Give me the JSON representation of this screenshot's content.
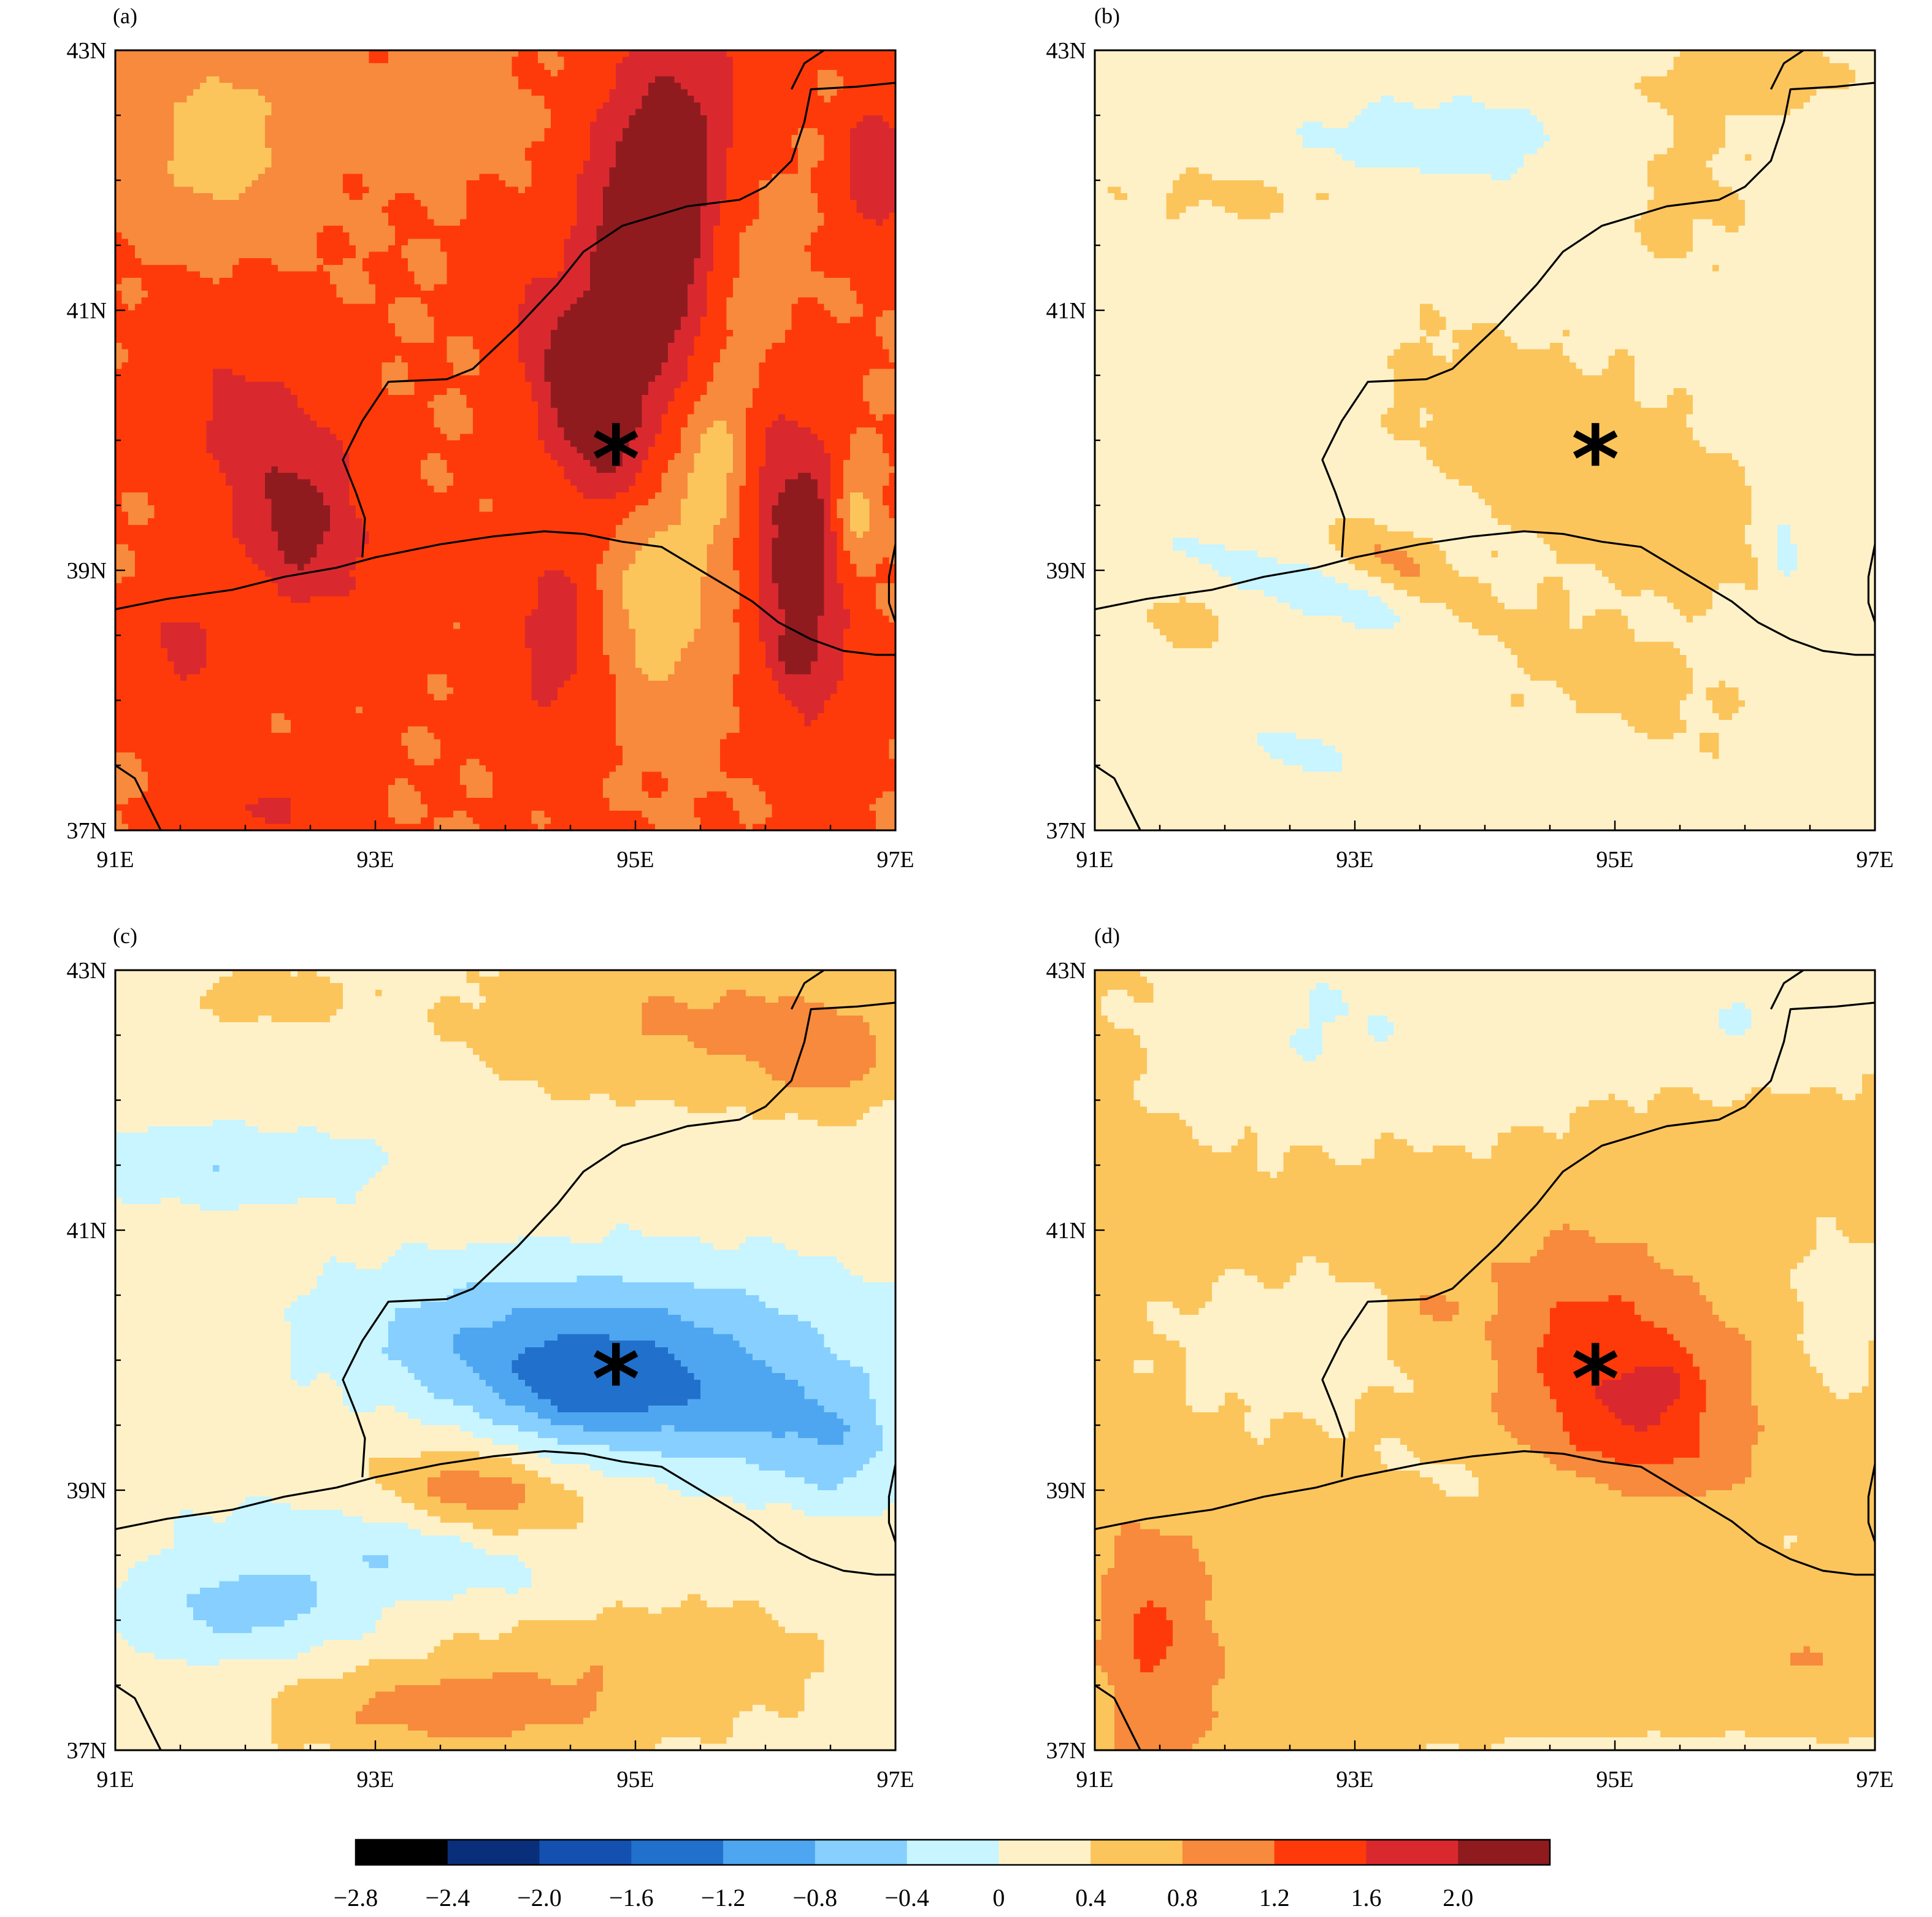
{
  "chart_data": {
    "type": "heatmap",
    "figure": "four-panel filled contour maps",
    "colors": [
      "#000000",
      "#0a2f7a",
      "#1450b0",
      "#2170cc",
      "#4ea6f0",
      "#86cfff",
      "#c8f5ff",
      "#fef1c8",
      "#fbc55c",
      "#f78a3c",
      "#ff3a0a",
      "#d9292f",
      "#8f1b1f"
    ],
    "colorbar_levels": [
      "−2.8",
      "−2.4",
      "−2.0",
      "−1.6",
      "−1.2",
      "−0.8",
      "−0.4",
      "0",
      "0.4",
      "0.8",
      "1.2",
      "1.6",
      "2.0"
    ],
    "colorbar_level_values": [
      -2.8,
      -2.4,
      -2.0,
      -1.6,
      -1.2,
      -0.8,
      -0.4,
      0,
      0.4,
      0.8,
      1.2,
      1.6,
      2.0
    ],
    "xlim": [
      91,
      97
    ],
    "ylim": [
      37,
      43
    ],
    "x_tick_labels": [
      "91E",
      "93E",
      "95E",
      "97E"
    ],
    "y_tick_labels": [
      "37N",
      "39N",
      "41N",
      "43N"
    ],
    "marker": {
      "symbol": "*",
      "lon": 94.85,
      "lat": 39.9
    },
    "panels": [
      {
        "label": "(a)",
        "background": 0.8,
        "anomalies": [
          {
            "lon": 95.15,
            "lat": 41.6,
            "rx": 0.55,
            "ry": 1.5,
            "rot": -8,
            "amp": 1.5
          },
          {
            "lon": 94.6,
            "lat": 40.3,
            "rx": 0.35,
            "ry": 0.9,
            "rot": 25,
            "amp": 0.9
          },
          {
            "lon": 92.3,
            "lat": 39.7,
            "rx": 0.6,
            "ry": 1.2,
            "rot": 25,
            "amp": 0.7
          },
          {
            "lon": 92.4,
            "lat": 39.3,
            "rx": 0.3,
            "ry": 0.45,
            "rot": 0,
            "amp": 0.4
          },
          {
            "lon": 96.25,
            "lat": 39.1,
            "rx": 0.35,
            "ry": 1.2,
            "rot": 5,
            "amp": 1.1
          },
          {
            "lon": 96.2,
            "lat": 38.3,
            "rx": 0.15,
            "ry": 0.2,
            "rot": 0,
            "amp": 0.4
          },
          {
            "lon": 96.35,
            "lat": 39.4,
            "rx": 0.12,
            "ry": 0.3,
            "rot": 0,
            "amp": 0.3
          },
          {
            "lon": 94.4,
            "lat": 38.5,
            "rx": 0.45,
            "ry": 0.9,
            "rot": 0,
            "amp": 0.55
          },
          {
            "lon": 91.5,
            "lat": 38.4,
            "rx": 0.35,
            "ry": 0.5,
            "rot": 0,
            "amp": 0.5
          },
          {
            "lon": 92.2,
            "lat": 37.2,
            "rx": 0.5,
            "ry": 0.35,
            "rot": 0,
            "amp": 0.45
          },
          {
            "lon": 95.15,
            "lat": 38.9,
            "rx": 0.45,
            "ry": 0.9,
            "rot": 0,
            "amp": -0.8
          },
          {
            "lon": 95.6,
            "lat": 39.8,
            "rx": 0.25,
            "ry": 0.55,
            "rot": 0,
            "amp": -0.6
          },
          {
            "lon": 96.7,
            "lat": 39.4,
            "rx": 0.15,
            "ry": 0.4,
            "rot": 0,
            "amp": -0.7
          },
          {
            "lon": 91.8,
            "lat": 42.3,
            "rx": 0.6,
            "ry": 0.7,
            "rot": 0,
            "amp": -0.6
          },
          {
            "lon": 93.5,
            "lat": 42.5,
            "rx": 0.5,
            "ry": 0.35,
            "rot": 0,
            "amp": -0.4
          },
          {
            "lon": 95.8,
            "lat": 41.2,
            "rx": 0.4,
            "ry": 1.1,
            "rot": 0,
            "amp": -0.4
          },
          {
            "lon": 96.85,
            "lat": 42.1,
            "rx": 0.25,
            "ry": 0.5,
            "rot": 0,
            "amp": 0.8
          }
        ]
      },
      {
        "label": "(b)",
        "background": -0.15,
        "anomalies": [
          {
            "lon": 94.8,
            "lat": 39.8,
            "rx": 1.6,
            "ry": 0.7,
            "rot": -30,
            "amp": 0.45
          },
          {
            "lon": 93.3,
            "lat": 39.1,
            "rx": 0.45,
            "ry": 0.18,
            "rot": -25,
            "amp": 0.55
          },
          {
            "lon": 94.5,
            "lat": 38.3,
            "rx": 1.6,
            "ry": 0.4,
            "rot": -20,
            "amp": 0.3
          },
          {
            "lon": 91.7,
            "lat": 38.6,
            "rx": 0.3,
            "ry": 0.15,
            "rot": -20,
            "amp": 0.5
          },
          {
            "lon": 92.3,
            "lat": 41.9,
            "rx": 1.2,
            "ry": 0.25,
            "rot": 0,
            "amp": 0.25
          },
          {
            "lon": 96.1,
            "lat": 42.8,
            "rx": 0.6,
            "ry": 0.25,
            "rot": 0,
            "amp": 0.45
          },
          {
            "lon": 95.5,
            "lat": 42.0,
            "rx": 0.6,
            "ry": 0.8,
            "rot": 0,
            "amp": 0.25
          },
          {
            "lon": 93.6,
            "lat": 42.3,
            "rx": 1.2,
            "ry": 0.4,
            "rot": 0,
            "amp": -0.45
          },
          {
            "lon": 92.8,
            "lat": 38.8,
            "rx": 1.3,
            "ry": 0.2,
            "rot": -20,
            "amp": -0.55
          },
          {
            "lon": 92.6,
            "lat": 37.6,
            "rx": 0.4,
            "ry": 0.15,
            "rot": -15,
            "amp": -0.5
          },
          {
            "lon": 96.3,
            "lat": 39.2,
            "rx": 0.15,
            "ry": 0.5,
            "rot": 0,
            "amp": -0.5
          },
          {
            "lon": 93.6,
            "lat": 39.6,
            "rx": 0.15,
            "ry": 0.1,
            "rot": 0,
            "amp": -0.3
          }
        ]
      },
      {
        "label": "(c)",
        "background": -0.2,
        "anomalies": [
          {
            "lon": 95.0,
            "lat": 39.8,
            "rx": 1.8,
            "ry": 0.55,
            "rot": -10,
            "amp": -1.25
          },
          {
            "lon": 94.5,
            "lat": 39.7,
            "rx": 0.5,
            "ry": 0.3,
            "rot": 0,
            "amp": -0.35
          },
          {
            "lon": 96.5,
            "lat": 39.3,
            "rx": 0.45,
            "ry": 0.45,
            "rot": 0,
            "amp": -0.45
          },
          {
            "lon": 95.1,
            "lat": 40.3,
            "rx": 2.0,
            "ry": 0.6,
            "rot": 0,
            "amp": -0.6
          },
          {
            "lon": 91.8,
            "lat": 41.5,
            "rx": 1.2,
            "ry": 0.3,
            "rot": 0,
            "amp": -0.6
          },
          {
            "lon": 92.0,
            "lat": 38.1,
            "rx": 1.0,
            "ry": 0.4,
            "rot": 0,
            "amp": -0.75
          },
          {
            "lon": 93.2,
            "lat": 38.5,
            "rx": 1.5,
            "ry": 0.3,
            "rot": -10,
            "amp": -0.5
          },
          {
            "lon": 93.8,
            "lat": 39.0,
            "rx": 0.7,
            "ry": 0.3,
            "rot": -10,
            "amp": 0.85
          },
          {
            "lon": 95.5,
            "lat": 42.6,
            "rx": 1.8,
            "ry": 0.6,
            "rot": 0,
            "amp": 0.65
          },
          {
            "lon": 96.5,
            "lat": 42.3,
            "rx": 0.5,
            "ry": 0.4,
            "rot": 0,
            "amp": 0.5
          },
          {
            "lon": 92.2,
            "lat": 42.8,
            "rx": 0.6,
            "ry": 0.2,
            "rot": 0,
            "amp": 0.5
          },
          {
            "lon": 93.5,
            "lat": 37.3,
            "rx": 1.3,
            "ry": 0.35,
            "rot": 0,
            "amp": 0.7
          },
          {
            "lon": 95.0,
            "lat": 37.7,
            "rx": 1.5,
            "ry": 0.6,
            "rot": 0,
            "amp": 0.45
          }
        ]
      },
      {
        "label": "(d)",
        "background": 0.15,
        "anomalies": [
          {
            "lon": 95.05,
            "lat": 39.8,
            "rx": 0.8,
            "ry": 1.1,
            "rot": 35,
            "amp": 1.05
          },
          {
            "lon": 95.3,
            "lat": 39.75,
            "rx": 0.28,
            "ry": 0.18,
            "rot": 30,
            "amp": 0.4
          },
          {
            "lon": 91.5,
            "lat": 37.8,
            "rx": 0.5,
            "ry": 1.1,
            "rot": 0,
            "amp": 0.55
          },
          {
            "lon": 91.4,
            "lat": 37.9,
            "rx": 0.15,
            "ry": 0.25,
            "rot": 0,
            "amp": 0.4
          },
          {
            "lon": 93.6,
            "lat": 40.4,
            "rx": 0.2,
            "ry": 0.15,
            "rot": 0,
            "amp": 0.4
          },
          {
            "lon": 96.5,
            "lat": 37.7,
            "rx": 0.2,
            "ry": 0.1,
            "rot": 0,
            "amp": 0.4
          },
          {
            "lon": 92.7,
            "lat": 42.6,
            "rx": 1.3,
            "ry": 0.9,
            "rot": 0,
            "amp": -0.55
          },
          {
            "lon": 96.0,
            "lat": 42.7,
            "rx": 1.2,
            "ry": 0.6,
            "rot": 0,
            "amp": -0.55
          },
          {
            "lon": 94.2,
            "lat": 42.5,
            "rx": 0.8,
            "ry": 1.0,
            "rot": 0,
            "amp": -0.2
          },
          {
            "lon": 92.5,
            "lat": 40.1,
            "rx": 1.1,
            "ry": 0.6,
            "rot": 0,
            "amp": -0.35
          },
          {
            "lon": 95.0,
            "lat": 38.9,
            "rx": 1.7,
            "ry": 0.25,
            "rot": -10,
            "amp": -0.35
          },
          {
            "lon": 96.7,
            "lat": 40.3,
            "rx": 0.4,
            "ry": 0.8,
            "rot": 0,
            "amp": -0.3
          },
          {
            "lon": 95.6,
            "lat": 37.0,
            "rx": 2.0,
            "ry": 0.12,
            "rot": 0,
            "amp": -0.35
          }
        ]
      }
    ],
    "border_lines": [
      [
        [
          91.0,
          38.7
        ],
        [
          91.4,
          38.78
        ],
        [
          91.9,
          38.85
        ],
        [
          92.3,
          38.95
        ],
        [
          92.7,
          39.02
        ],
        [
          93.0,
          39.1
        ],
        [
          93.5,
          39.2
        ],
        [
          93.9,
          39.26
        ],
        [
          94.3,
          39.3
        ],
        [
          94.6,
          39.28
        ],
        [
          94.9,
          39.22
        ],
        [
          95.2,
          39.18
        ],
        [
          95.5,
          39.0
        ],
        [
          95.7,
          38.88
        ],
        [
          95.9,
          38.76
        ],
        [
          96.1,
          38.6
        ],
        [
          96.35,
          38.47
        ],
        [
          96.6,
          38.38
        ],
        [
          96.85,
          38.35
        ],
        [
          97.0,
          38.35
        ]
      ],
      [
        [
          92.9,
          39.1
        ],
        [
          92.92,
          39.4
        ],
        [
          92.85,
          39.6
        ],
        [
          92.75,
          39.85
        ],
        [
          92.9,
          40.15
        ],
        [
          93.1,
          40.45
        ],
        [
          93.55,
          40.47
        ],
        [
          93.75,
          40.55
        ],
        [
          94.1,
          40.88
        ],
        [
          94.4,
          41.2
        ],
        [
          94.6,
          41.45
        ],
        [
          94.9,
          41.65
        ],
        [
          95.4,
          41.8
        ],
        [
          95.8,
          41.85
        ],
        [
          96.0,
          41.95
        ],
        [
          96.2,
          42.15
        ],
        [
          96.3,
          42.45
        ],
        [
          96.35,
          42.7
        ],
        [
          96.7,
          42.72
        ],
        [
          97.0,
          42.75
        ]
      ],
      [
        [
          96.2,
          42.7
        ],
        [
          96.3,
          42.9
        ],
        [
          96.45,
          43.0
        ]
      ],
      [
        [
          97.0,
          39.2
        ],
        [
          96.95,
          38.95
        ],
        [
          96.95,
          38.75
        ],
        [
          97.0,
          38.6
        ]
      ],
      [
        [
          91.0,
          37.5
        ],
        [
          91.15,
          37.4
        ],
        [
          91.25,
          37.2
        ],
        [
          91.35,
          37.0
        ]
      ]
    ]
  },
  "panels": [
    {
      "label": "(a)"
    },
    {
      "label": "(b)"
    },
    {
      "label": "(c)"
    },
    {
      "label": "(d)"
    }
  ],
  "axes": {
    "x_ticks": [
      "91E",
      "93E",
      "95E",
      "97E"
    ],
    "y_ticks": [
      "43N",
      "41N",
      "39N",
      "37N"
    ]
  },
  "colorbar": {
    "labels": [
      "−2.8",
      "−2.4",
      "−2.0",
      "−1.6",
      "−1.2",
      "−0.8",
      "−0.4",
      "0",
      "0.4",
      "0.8",
      "1.2",
      "1.6",
      "2.0"
    ]
  }
}
